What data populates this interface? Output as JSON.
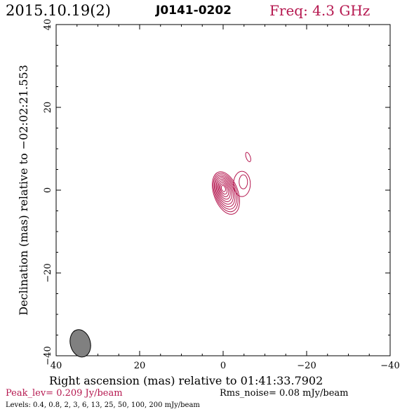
{
  "header": {
    "date": "2015.10.19(2)",
    "source": "J0141-0202",
    "freq": "Freq: 4.3 GHz"
  },
  "footer": {
    "xlabel": "Right ascension (mas) relative to 01:41:33.7902",
    "peak": "Peak_lev=  0.209 Jy/beam",
    "rms": "Rms_noise= 0.08 mJy/beam",
    "levels": "Levels: 0.4, 0.8,   2,   3,   6,  13,  25,  50, 100, 200 mJy/beam"
  },
  "colors": {
    "contour": "#b5174f",
    "beam_fill": "#808080",
    "peak_text": "#b5174f"
  },
  "chart_data": {
    "type": "contour",
    "ylabel": "Declination (mas) relative to −02:02:21.553",
    "xlim": [
      40,
      -40
    ],
    "ylim": [
      -40,
      40
    ],
    "xticks": [
      40,
      20,
      0,
      -20,
      -40
    ],
    "xtick_labels": [
      "40",
      "20",
      "0",
      "−20",
      "−40"
    ],
    "yticks": [
      -40,
      -20,
      0,
      20,
      40
    ],
    "ytick_labels": [
      "−40",
      "−20",
      "0",
      "20",
      "40"
    ],
    "contour_levels_mJy": [
      0.4,
      0.8,
      2,
      3,
      6,
      13,
      25,
      50,
      100,
      200
    ],
    "peak_Jy_per_beam": 0.209,
    "rms_noise_mJy_per_beam": 0.08,
    "core": {
      "ra": 0.0,
      "dec": 0.5
    },
    "jet_component": {
      "ra": -4.5,
      "dec": 1.5
    },
    "secondary_blob": {
      "ra": -6.0,
      "dec": 8.0
    },
    "beam": {
      "ra": 34.2,
      "dec": -37.0,
      "major_mas": 2.8,
      "minor_mas": 2.0,
      "pa_deg": -15
    },
    "grid": false
  }
}
